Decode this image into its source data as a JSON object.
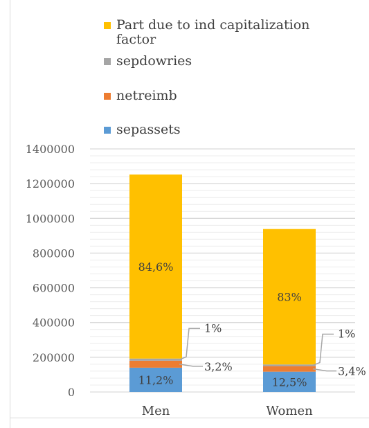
{
  "chart_data": {
    "type": "bar",
    "stacked": true,
    "categories": [
      "Men",
      "Women"
    ],
    "series": [
      {
        "name": "sepassets",
        "color": "#5b9bd5",
        "values": [
          140000,
          117000
        ],
        "labels": [
          "11,2%",
          "12,5%"
        ]
      },
      {
        "name": "netreimb",
        "color": "#ed7d31",
        "values": [
          40000,
          32000
        ],
        "labels": [
          "3,2%",
          "3,4%"
        ]
      },
      {
        "name": "sepdowries",
        "color": "#a5a5a5",
        "values": [
          12500,
          9500
        ],
        "labels": [
          "1%",
          "1%"
        ]
      },
      {
        "name": "Part due to ind capitalization factor",
        "color": "#ffc000",
        "values": [
          1060000,
          780000
        ],
        "labels": [
          "84,6%",
          "83%"
        ]
      }
    ],
    "ylim": [
      0,
      1400000
    ],
    "yticks": [
      0,
      200000,
      400000,
      600000,
      800000,
      1000000,
      1200000,
      1400000
    ],
    "ytick_labels": [
      "0",
      "200000",
      "400000",
      "600000",
      "800000",
      "1000000",
      "1200000",
      "1400000"
    ],
    "title": "",
    "xlabel": "",
    "ylabel": "",
    "grid": true,
    "legend_position": "top",
    "legend_order": [
      "Part due to ind capitalization factor",
      "sepdowries",
      "netreimb",
      "sepassets"
    ]
  }
}
